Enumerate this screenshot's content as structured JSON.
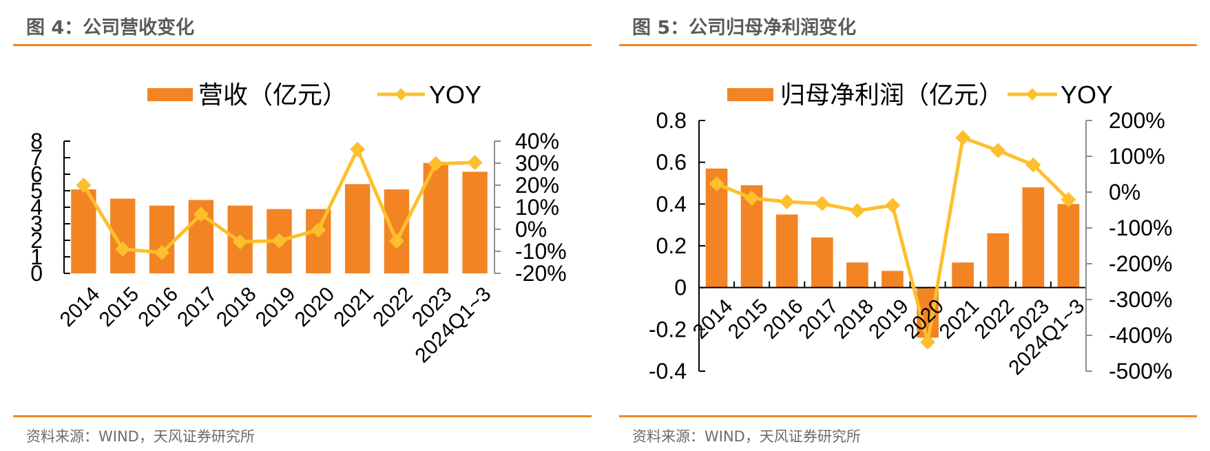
{
  "figures": [
    {
      "id": "left",
      "title": "图 4：公司营收变化",
      "source": "资料来源：WIND，天风证券研究所",
      "colors": {
        "bar": "#F28424",
        "line": "#FDBF2D",
        "axis": "#000000",
        "axis_right": "#8c8c8c",
        "rule": "#F28424"
      }
    },
    {
      "id": "right",
      "title": "图 5：公司归母净利润变化",
      "source": "资料来源：WIND，天风证券研究所",
      "colors": {
        "bar": "#F28424",
        "line": "#FDBF2D",
        "axis": "#000000",
        "axis_right": "#8c8c8c",
        "rule": "#F28424"
      }
    }
  ],
  "chart_data": [
    {
      "type": "bar",
      "title": "公司营收变化",
      "categories": [
        "2014",
        "2015",
        "2016",
        "2017",
        "2018",
        "2019",
        "2020",
        "2021",
        "2022",
        "2023",
        "2024Q1~3"
      ],
      "series": [
        {
          "name": "营收（亿元）",
          "type": "bar",
          "axis": "left",
          "values": [
            5.08,
            4.52,
            4.1,
            4.44,
            4.1,
            3.89,
            3.89,
            5.4,
            5.08,
            6.68,
            6.15
          ]
        },
        {
          "name": "YOY",
          "type": "line",
          "marker": "diamond",
          "axis": "right",
          "values": [
            20.0,
            -9.0,
            -10.6,
            6.8,
            -5.7,
            -5.2,
            -0.3,
            36.3,
            -5.4,
            29.8,
            30.3
          ],
          "unit": "%"
        }
      ],
      "legend": [
        "营收（亿元）",
        "YOY"
      ],
      "legend_position": "top-center",
      "y_left": {
        "min": 0,
        "max": 8,
        "ticks": [
          "0",
          "1",
          "2",
          "3",
          "4",
          "5",
          "6",
          "7",
          "8"
        ],
        "tick_values": [
          0,
          1,
          2,
          3,
          4,
          5,
          6,
          7,
          8
        ]
      },
      "y_right": {
        "min": -20,
        "max": 40,
        "ticks": [
          "-20%",
          "-10%",
          "0%",
          "10%",
          "20%",
          "30%",
          "40%"
        ],
        "tick_values": [
          -20,
          -10,
          0,
          10,
          20,
          30,
          40
        ]
      },
      "xlabel": "",
      "ylabel": "",
      "grid": false
    },
    {
      "type": "bar",
      "title": "公司归母净利润变化",
      "categories": [
        "2014",
        "2015",
        "2016",
        "2017",
        "2018",
        "2019",
        "2020",
        "2021",
        "2022",
        "2023",
        "2024Q1~3"
      ],
      "series": [
        {
          "name": "归母净利润（亿元）",
          "type": "bar",
          "axis": "left",
          "values": [
            0.57,
            0.49,
            0.35,
            0.24,
            0.12,
            0.08,
            -0.24,
            0.12,
            0.26,
            0.48,
            0.4
          ]
        },
        {
          "name": "YOY",
          "type": "line",
          "marker": "diamond",
          "axis": "right",
          "values": [
            23,
            -17,
            -27,
            -32,
            -52,
            -37,
            -419,
            152,
            116,
            76,
            -21
          ],
          "unit": "%"
        }
      ],
      "legend": [
        "归母净利润（亿元）",
        "YOY"
      ],
      "legend_position": "top-center",
      "y_left": {
        "min": -0.4,
        "max": 0.8,
        "ticks": [
          "-0.4",
          "-0.2",
          "0",
          "0.2",
          "0.4",
          "0.6",
          "0.8"
        ],
        "tick_values": [
          -0.4,
          -0.2,
          0,
          0.2,
          0.4,
          0.6,
          0.8
        ]
      },
      "y_right": {
        "min": -500,
        "max": 200,
        "ticks": [
          "-500%",
          "-400%",
          "-300%",
          "-200%",
          "-100%",
          "0%",
          "100%",
          "200%"
        ],
        "tick_values": [
          -500,
          -400,
          -300,
          -200,
          -100,
          0,
          100,
          200
        ]
      },
      "xlabel": "",
      "ylabel": "",
      "grid": false
    }
  ]
}
